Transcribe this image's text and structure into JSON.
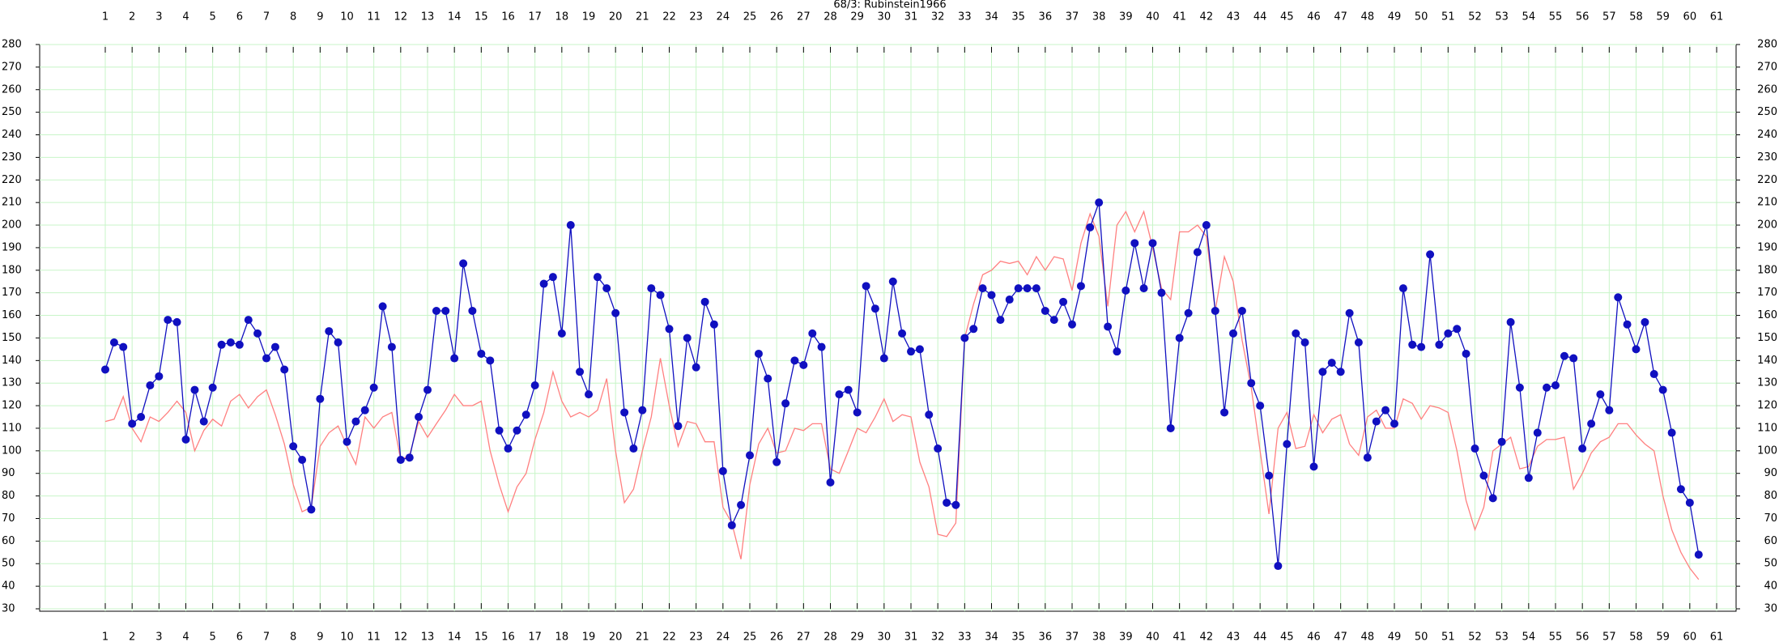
{
  "chart_data": {
    "type": "line",
    "title": "68/3: Rubinstein1966",
    "x": [
      1,
      1.33,
      1.67,
      2,
      2.33,
      2.67,
      3,
      3.33,
      3.67,
      4,
      4.33,
      4.67,
      5,
      5.33,
      5.67,
      6,
      6.33,
      6.67,
      7,
      7.33,
      7.67,
      8,
      8.33,
      8.67,
      9,
      9.33,
      9.67,
      10,
      10.33,
      10.67,
      11,
      11.33,
      11.67,
      12,
      12.33,
      12.67,
      13,
      13.33,
      13.67,
      14,
      14.33,
      14.67,
      15,
      15.33,
      15.67,
      16,
      16.33,
      16.67,
      17,
      17.33,
      17.67,
      18,
      18.33,
      18.67,
      19,
      19.33,
      19.67,
      20,
      20.33,
      20.67,
      21,
      21.33,
      21.67,
      22,
      22.33,
      22.67,
      23,
      23.33,
      23.67,
      24,
      24.33,
      24.67,
      25,
      25.33,
      25.67,
      26,
      26.33,
      26.67,
      27,
      27.33,
      27.67,
      28,
      28.33,
      28.67,
      29,
      29.33,
      29.67,
      30,
      30.33,
      30.67,
      31,
      31.33,
      31.67,
      32,
      32.33,
      32.67,
      33,
      33.33,
      33.67,
      34,
      34.33,
      34.67,
      35,
      35.33,
      35.67,
      36,
      36.33,
      36.67,
      37,
      37.33,
      37.67,
      38,
      38.33,
      38.67,
      39,
      39.33,
      39.67,
      40,
      40.33,
      40.67,
      41,
      41.33,
      41.67,
      42,
      42.33,
      42.67,
      43,
      43.33,
      43.67,
      44,
      44.33,
      44.67,
      45,
      45.33,
      45.67,
      46,
      46.33,
      46.67,
      47,
      47.33,
      47.67,
      48,
      48.33,
      48.67,
      49,
      49.33,
      49.67,
      50,
      50.33,
      50.67,
      51,
      51.33,
      51.67,
      52,
      52.33,
      52.67,
      53,
      53.33,
      53.67,
      54,
      54.33,
      54.67,
      55,
      55.33,
      55.67,
      56,
      56.33,
      56.67,
      57,
      57.33,
      57.67,
      58,
      58.33,
      58.67,
      59,
      59.33,
      59.67,
      60,
      60.33
    ],
    "series": [
      {
        "color": "#ff8080",
        "values": [
          113,
          114,
          124,
          110,
          104,
          115,
          113,
          117,
          122,
          117,
          100,
          109,
          114,
          111,
          122,
          125,
          119,
          124,
          127,
          116,
          103,
          85,
          73,
          75,
          102,
          108,
          111,
          102,
          94,
          115,
          110,
          115,
          117,
          96,
          98,
          113,
          106,
          112,
          118,
          125,
          120,
          120,
          122,
          100,
          85,
          73,
          84,
          90,
          105,
          117,
          135,
          122,
          115,
          117,
          115,
          118,
          132,
          100,
          77,
          83,
          100,
          115,
          141,
          120,
          102,
          113,
          112,
          104,
          104,
          75,
          68,
          52,
          85,
          103,
          110,
          99,
          100,
          110,
          109,
          112,
          112,
          92,
          90,
          100,
          110,
          108,
          115,
          123,
          113,
          116,
          115,
          95,
          84,
          63,
          62,
          68,
          150,
          165,
          178,
          180,
          184,
          183,
          184,
          178,
          186,
          180,
          186,
          185,
          171,
          192,
          205,
          195,
          164,
          200,
          206,
          197,
          206,
          190,
          172,
          167,
          197,
          197,
          200,
          195,
          162,
          186,
          175,
          149,
          128,
          100,
          72,
          110,
          117,
          101,
          102,
          116,
          108,
          114,
          116,
          103,
          98,
          115,
          118,
          110,
          110,
          123,
          121,
          114,
          120,
          119,
          117,
          100,
          78,
          65,
          75,
          100,
          103,
          106,
          92,
          93,
          102,
          105,
          105,
          106,
          83,
          90,
          99,
          104,
          106,
          112,
          112,
          107,
          103,
          100,
          80,
          65,
          55,
          48,
          43
        ]
      },
      {
        "color": "#1010c0",
        "markers": true,
        "values": [
          136,
          148,
          146,
          112,
          115,
          129,
          133,
          158,
          157,
          105,
          127,
          113,
          128,
          147,
          148,
          147,
          158,
          152,
          141,
          146,
          136,
          102,
          96,
          74,
          123,
          153,
          148,
          104,
          113,
          118,
          128,
          164,
          146,
          96,
          97,
          115,
          127,
          162,
          162,
          141,
          183,
          162,
          143,
          140,
          109,
          101,
          109,
          116,
          129,
          174,
          177,
          152,
          200,
          135,
          125,
          177,
          172,
          161,
          117,
          101,
          118,
          172,
          169,
          154,
          111,
          150,
          137,
          166,
          156,
          91,
          67,
          76,
          98,
          143,
          132,
          95,
          121,
          140,
          138,
          152,
          146,
          86,
          125,
          127,
          117,
          173,
          163,
          141,
          175,
          152,
          144,
          145,
          116,
          101,
          77,
          76,
          150,
          154,
          172,
          169,
          158,
          167,
          172,
          172,
          172,
          162,
          158,
          166,
          156,
          173,
          199,
          210,
          155,
          144,
          171,
          192,
          172,
          192,
          170,
          110,
          150,
          161,
          188,
          200,
          162,
          117,
          152,
          162,
          130,
          120,
          89,
          49,
          103,
          152,
          148,
          93,
          135,
          139,
          135,
          161,
          148,
          97,
          113,
          118,
          112,
          172,
          147,
          146,
          187,
          147,
          152,
          154,
          143,
          101,
          89,
          79,
          104,
          157,
          128,
          88,
          108,
          128,
          129,
          142,
          141,
          101,
          112,
          125,
          118,
          168,
          156,
          145,
          157,
          134,
          127,
          108,
          83,
          77,
          54
        ]
      }
    ],
    "xlim": [
      1,
      61
    ],
    "xticks": [
      1,
      2,
      3,
      4,
      5,
      6,
      7,
      8,
      9,
      10,
      11,
      12,
      13,
      14,
      15,
      16,
      17,
      18,
      19,
      20,
      21,
      22,
      23,
      24,
      25,
      26,
      27,
      28,
      29,
      30,
      31,
      32,
      33,
      34,
      35,
      36,
      37,
      38,
      39,
      40,
      41,
      42,
      43,
      44,
      45,
      46,
      47,
      48,
      49,
      50,
      51,
      52,
      53,
      54,
      55,
      56,
      57,
      58,
      59,
      60,
      61
    ],
    "ylim": [
      30,
      280
    ],
    "yticks": [
      30,
      40,
      50,
      60,
      70,
      80,
      90,
      100,
      110,
      120,
      130,
      140,
      150,
      160,
      170,
      180,
      190,
      200,
      210,
      220,
      230,
      240,
      250,
      260,
      270,
      280
    ],
    "grid": true
  }
}
